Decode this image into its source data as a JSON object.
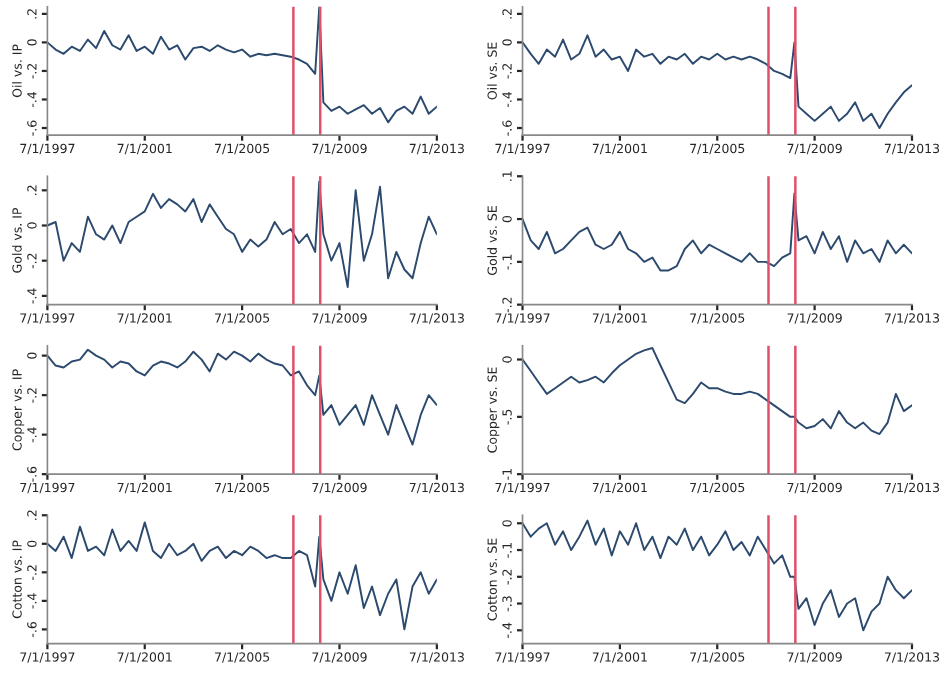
{
  "chart_data": [
    {
      "type": "line",
      "ylabel": "Oil vs. IP",
      "x": [
        "1997-07",
        "1997-11",
        "1998-03",
        "1998-07",
        "1998-11",
        "1999-03",
        "1999-07",
        "1999-11",
        "2000-03",
        "2000-07",
        "2000-11",
        "2001-03",
        "2001-07",
        "2001-11",
        "2002-03",
        "2002-07",
        "2002-11",
        "2003-03",
        "2003-07",
        "2003-11",
        "2004-03",
        "2004-07",
        "2004-11",
        "2005-03",
        "2005-07",
        "2005-11",
        "2006-03",
        "2006-07",
        "2006-11",
        "2007-03",
        "2007-07",
        "2007-11",
        "2008-03",
        "2008-07",
        "2008-09",
        "2008-11",
        "2009-03",
        "2009-07",
        "2009-11",
        "2010-03",
        "2010-07",
        "2010-11",
        "2011-03",
        "2011-07",
        "2011-11",
        "2012-03",
        "2012-07",
        "2012-11",
        "2013-03",
        "2013-07"
      ],
      "series": [
        {
          "color": "#2c4a6e",
          "values": [
            0,
            -0.05,
            -0.08,
            -0.03,
            -0.06,
            0.02,
            -0.04,
            0.08,
            -0.02,
            -0.05,
            0.05,
            -0.06,
            -0.03,
            -0.08,
            0.04,
            -0.05,
            -0.02,
            -0.12,
            -0.04,
            -0.03,
            -0.06,
            -0.02,
            -0.05,
            -0.07,
            -0.05,
            -0.1,
            -0.08,
            -0.09,
            -0.08,
            -0.09,
            -0.1,
            -0.12,
            -0.15,
            -0.22,
            0.25,
            -0.42,
            -0.48,
            -0.45,
            -0.5,
            -0.47,
            -0.44,
            -0.5,
            -0.46,
            -0.56,
            -0.48,
            -0.45,
            -0.5,
            -0.38,
            -0.5,
            -0.45
          ]
        }
      ],
      "xlim": [
        "1997-07-01",
        "2013-07-01"
      ],
      "xticks": [
        {
          "value": "1997-07-01",
          "label": "7/1/1997"
        },
        {
          "value": "2001-07-01",
          "label": "7/1/2001"
        },
        {
          "value": "2005-07-01",
          "label": "7/1/2005"
        },
        {
          "value": "2009-07-01",
          "label": "7/1/2009"
        },
        {
          "value": "2013-07-01",
          "label": "7/1/2013"
        }
      ],
      "ylim": [
        -0.65,
        0.25
      ],
      "yticks": [
        {
          "value": 0.2,
          "label": ".2"
        },
        0,
        {
          "value": -0.2,
          "label": "-.2"
        },
        {
          "value": -0.4,
          "label": "-.4"
        },
        {
          "value": -0.6,
          "label": "-.6"
        }
      ],
      "ref_lines": [
        {
          "axis": "x",
          "value": "2007-08-09",
          "color": "#e0506a"
        },
        {
          "axis": "x",
          "value": "2008-09-15",
          "color": "#e0506a"
        }
      ]
    },
    {
      "type": "line",
      "ylabel": "Oil vs. SE",
      "x": [
        "1997-07",
        "1997-11",
        "1998-03",
        "1998-07",
        "1998-11",
        "1999-03",
        "1999-07",
        "1999-11",
        "2000-03",
        "2000-07",
        "2000-11",
        "2001-03",
        "2001-07",
        "2001-11",
        "2002-03",
        "2002-07",
        "2002-11",
        "2003-03",
        "2003-07",
        "2003-11",
        "2004-03",
        "2004-07",
        "2004-11",
        "2005-03",
        "2005-07",
        "2005-11",
        "2006-03",
        "2006-07",
        "2006-11",
        "2007-03",
        "2007-07",
        "2007-11",
        "2008-03",
        "2008-07",
        "2008-09",
        "2008-11",
        "2009-03",
        "2009-07",
        "2009-11",
        "2010-03",
        "2010-07",
        "2010-11",
        "2011-03",
        "2011-07",
        "2011-11",
        "2012-03",
        "2012-07",
        "2012-11",
        "2013-03",
        "2013-07"
      ],
      "series": [
        {
          "color": "#2c4a6e",
          "values": [
            0,
            -0.08,
            -0.15,
            -0.05,
            -0.1,
            0.02,
            -0.12,
            -0.08,
            0.05,
            -0.1,
            -0.05,
            -0.12,
            -0.1,
            -0.2,
            -0.05,
            -0.1,
            -0.08,
            -0.15,
            -0.1,
            -0.12,
            -0.08,
            -0.15,
            -0.1,
            -0.12,
            -0.08,
            -0.12,
            -0.1,
            -0.12,
            -0.1,
            -0.12,
            -0.15,
            -0.2,
            -0.22,
            -0.25,
            0.0,
            -0.45,
            -0.5,
            -0.55,
            -0.5,
            -0.45,
            -0.55,
            -0.5,
            -0.42,
            -0.55,
            -0.5,
            -0.6,
            -0.5,
            -0.42,
            -0.35,
            -0.3
          ]
        }
      ],
      "xlim": [
        "1997-07-01",
        "2013-07-01"
      ],
      "xticks": [
        {
          "value": "1997-07-01",
          "label": "7/1/1997"
        },
        {
          "value": "2001-07-01",
          "label": "7/1/2001"
        },
        {
          "value": "2005-07-01",
          "label": "7/1/2005"
        },
        {
          "value": "2009-07-01",
          "label": "7/1/2009"
        },
        {
          "value": "2013-07-01",
          "label": "7/1/2013"
        }
      ],
      "ylim": [
        -0.65,
        0.25
      ],
      "yticks": [
        {
          "value": 0.2,
          "label": ".2"
        },
        0,
        {
          "value": -0.2,
          "label": "-.2"
        },
        {
          "value": -0.4,
          "label": "-.4"
        },
        {
          "value": -0.6,
          "label": "-.6"
        }
      ],
      "ref_lines": [
        {
          "axis": "x",
          "value": "2007-08-09",
          "color": "#e0506a"
        },
        {
          "axis": "x",
          "value": "2008-09-15",
          "color": "#e0506a"
        }
      ]
    },
    {
      "type": "line",
      "ylabel": "Gold vs. IP",
      "x": [
        "1997-07",
        "1997-11",
        "1998-03",
        "1998-07",
        "1998-11",
        "1999-03",
        "1999-07",
        "1999-11",
        "2000-03",
        "2000-07",
        "2000-11",
        "2001-03",
        "2001-07",
        "2001-11",
        "2002-03",
        "2002-07",
        "2002-11",
        "2003-03",
        "2003-07",
        "2003-11",
        "2004-03",
        "2004-07",
        "2004-11",
        "2005-03",
        "2005-07",
        "2005-11",
        "2006-03",
        "2006-07",
        "2006-11",
        "2007-03",
        "2007-07",
        "2007-11",
        "2008-03",
        "2008-07",
        "2008-09",
        "2008-11",
        "2009-03",
        "2009-07",
        "2009-11",
        "2010-03",
        "2010-07",
        "2010-11",
        "2011-03",
        "2011-07",
        "2011-11",
        "2012-03",
        "2012-07",
        "2012-11",
        "2013-03",
        "2013-07"
      ],
      "series": [
        {
          "color": "#2c4a6e",
          "values": [
            0,
            0.02,
            -0.2,
            -0.1,
            -0.15,
            0.05,
            -0.05,
            -0.08,
            0,
            -0.1,
            0.02,
            0.05,
            0.08,
            0.18,
            0.1,
            0.15,
            0.12,
            0.08,
            0.15,
            0.02,
            0.12,
            0.05,
            -0.02,
            -0.05,
            -0.15,
            -0.08,
            -0.12,
            -0.08,
            0.02,
            -0.05,
            -0.02,
            -0.1,
            -0.05,
            -0.15,
            0.25,
            -0.05,
            -0.2,
            -0.1,
            -0.35,
            0.2,
            -0.2,
            -0.05,
            0.22,
            -0.3,
            -0.15,
            -0.25,
            -0.3,
            -0.1,
            0.05,
            -0.05
          ]
        }
      ],
      "xlim": [
        "1997-07-01",
        "2013-07-01"
      ],
      "xticks": [
        {
          "value": "1997-07-01",
          "label": "7/1/1997"
        },
        {
          "value": "2001-07-01",
          "label": "7/1/2001"
        },
        {
          "value": "2005-07-01",
          "label": "7/1/2005"
        },
        {
          "value": "2009-07-01",
          "label": "7/1/2009"
        },
        {
          "value": "2013-07-01",
          "label": "7/1/2013"
        }
      ],
      "ylim": [
        -0.45,
        0.28
      ],
      "yticks": [
        {
          "value": 0.2,
          "label": ".2"
        },
        0,
        {
          "value": -0.2,
          "label": "-.2"
        },
        {
          "value": -0.4,
          "label": "-.4"
        }
      ],
      "ref_lines": [
        {
          "axis": "x",
          "value": "2007-08-09",
          "color": "#e0506a"
        },
        {
          "axis": "x",
          "value": "2008-09-15",
          "color": "#e0506a"
        }
      ]
    },
    {
      "type": "line",
      "ylabel": "Gold vs. SE",
      "x": [
        "1997-07",
        "1997-11",
        "1998-03",
        "1998-07",
        "1998-11",
        "1999-03",
        "1999-07",
        "1999-11",
        "2000-03",
        "2000-07",
        "2000-11",
        "2001-03",
        "2001-07",
        "2001-11",
        "2002-03",
        "2002-07",
        "2002-11",
        "2003-03",
        "2003-07",
        "2003-11",
        "2004-03",
        "2004-07",
        "2004-11",
        "2005-03",
        "2005-07",
        "2005-11",
        "2006-03",
        "2006-07",
        "2006-11",
        "2007-03",
        "2007-07",
        "2007-11",
        "2008-03",
        "2008-07",
        "2008-09",
        "2008-11",
        "2009-03",
        "2009-07",
        "2009-11",
        "2010-03",
        "2010-07",
        "2010-11",
        "2011-03",
        "2011-07",
        "2011-11",
        "2012-03",
        "2012-07",
        "2012-11",
        "2013-03",
        "2013-07"
      ],
      "series": [
        {
          "color": "#2c4a6e",
          "values": [
            0,
            -0.05,
            -0.07,
            -0.03,
            -0.08,
            -0.07,
            -0.05,
            -0.03,
            -0.02,
            -0.06,
            -0.07,
            -0.06,
            -0.03,
            -0.07,
            -0.08,
            -0.1,
            -0.09,
            -0.12,
            -0.12,
            -0.11,
            -0.07,
            -0.05,
            -0.08,
            -0.06,
            -0.07,
            -0.08,
            -0.09,
            -0.1,
            -0.08,
            -0.1,
            -0.1,
            -0.11,
            -0.09,
            -0.08,
            0.06,
            -0.05,
            -0.04,
            -0.08,
            -0.03,
            -0.07,
            -0.04,
            -0.1,
            -0.05,
            -0.08,
            -0.07,
            -0.1,
            -0.05,
            -0.08,
            -0.06,
            -0.08
          ]
        }
      ],
      "xlim": [
        "1997-07-01",
        "2013-07-01"
      ],
      "xticks": [
        {
          "value": "1997-07-01",
          "label": "7/1/1997"
        },
        {
          "value": "2001-07-01",
          "label": "7/1/2001"
        },
        {
          "value": "2005-07-01",
          "label": "7/1/2005"
        },
        {
          "value": "2009-07-01",
          "label": "7/1/2009"
        },
        {
          "value": "2013-07-01",
          "label": "7/1/2013"
        }
      ],
      "ylim": [
        -0.2,
        0.1
      ],
      "yticks": [
        {
          "value": 0.1,
          "label": ".1"
        },
        0,
        {
          "value": -0.1,
          "label": "-.1"
        },
        {
          "value": -0.2,
          "label": "-.2"
        }
      ],
      "ref_lines": [
        {
          "axis": "x",
          "value": "2007-08-09",
          "color": "#e0506a"
        },
        {
          "axis": "x",
          "value": "2008-09-15",
          "color": "#e0506a"
        }
      ]
    },
    {
      "type": "line",
      "ylabel": "Copper vs. IP",
      "x": [
        "1997-07",
        "1997-11",
        "1998-03",
        "1998-07",
        "1998-11",
        "1999-03",
        "1999-07",
        "1999-11",
        "2000-03",
        "2000-07",
        "2000-11",
        "2001-03",
        "2001-07",
        "2001-11",
        "2002-03",
        "2002-07",
        "2002-11",
        "2003-03",
        "2003-07",
        "2003-11",
        "2004-03",
        "2004-07",
        "2004-11",
        "2005-03",
        "2005-07",
        "2005-11",
        "2006-03",
        "2006-07",
        "2006-11",
        "2007-03",
        "2007-07",
        "2007-11",
        "2008-03",
        "2008-07",
        "2008-09",
        "2008-11",
        "2009-03",
        "2009-07",
        "2009-11",
        "2010-03",
        "2010-07",
        "2010-11",
        "2011-03",
        "2011-07",
        "2011-11",
        "2012-03",
        "2012-07",
        "2012-11",
        "2013-03",
        "2013-07"
      ],
      "series": [
        {
          "color": "#2c4a6e",
          "values": [
            0,
            -0.05,
            -0.06,
            -0.03,
            -0.02,
            0.03,
            0.0,
            -0.02,
            -0.06,
            -0.03,
            -0.04,
            -0.08,
            -0.1,
            -0.05,
            -0.03,
            -0.04,
            -0.06,
            -0.03,
            0.02,
            -0.02,
            -0.08,
            0.01,
            -0.02,
            0.02,
            0.0,
            -0.03,
            0.01,
            -0.02,
            -0.04,
            -0.05,
            -0.1,
            -0.08,
            -0.15,
            -0.2,
            -0.1,
            -0.3,
            -0.25,
            -0.35,
            -0.3,
            -0.25,
            -0.35,
            -0.2,
            -0.3,
            -0.4,
            -0.25,
            -0.35,
            -0.45,
            -0.3,
            -0.2,
            -0.25
          ]
        }
      ],
      "xlim": [
        "1997-07-01",
        "2013-07-01"
      ],
      "xticks": [
        {
          "value": "1997-07-01",
          "label": "7/1/1997"
        },
        {
          "value": "2001-07-01",
          "label": "7/1/2001"
        },
        {
          "value": "2005-07-01",
          "label": "7/1/2005"
        },
        {
          "value": "2009-07-01",
          "label": "7/1/2009"
        },
        {
          "value": "2013-07-01",
          "label": "7/1/2013"
        }
      ],
      "ylim": [
        -0.6,
        0.05
      ],
      "yticks": [
        0,
        {
          "value": -0.2,
          "label": "-.2"
        },
        {
          "value": -0.4,
          "label": "-.4"
        },
        {
          "value": -0.6,
          "label": "-.6"
        }
      ],
      "ref_lines": [
        {
          "axis": "x",
          "value": "2007-08-09",
          "color": "#e0506a"
        },
        {
          "axis": "x",
          "value": "2008-09-15",
          "color": "#e0506a"
        }
      ]
    },
    {
      "type": "line",
      "ylabel": "Copper vs. SE",
      "x": [
        "1997-07",
        "1997-11",
        "1998-03",
        "1998-07",
        "1998-11",
        "1999-03",
        "1999-07",
        "1999-11",
        "2000-03",
        "2000-07",
        "2000-11",
        "2001-03",
        "2001-07",
        "2001-11",
        "2002-03",
        "2002-07",
        "2002-11",
        "2003-03",
        "2003-07",
        "2003-11",
        "2004-03",
        "2004-07",
        "2004-11",
        "2005-03",
        "2005-07",
        "2005-11",
        "2006-03",
        "2006-07",
        "2006-11",
        "2007-03",
        "2007-07",
        "2007-11",
        "2008-03",
        "2008-07",
        "2008-09",
        "2008-11",
        "2009-03",
        "2009-07",
        "2009-11",
        "2010-03",
        "2010-07",
        "2010-11",
        "2011-03",
        "2011-07",
        "2011-11",
        "2012-03",
        "2012-07",
        "2012-11",
        "2013-03",
        "2013-07"
      ],
      "series": [
        {
          "color": "#2c4a6e",
          "values": [
            0,
            -0.1,
            -0.2,
            -0.3,
            -0.25,
            -0.2,
            -0.15,
            -0.2,
            -0.18,
            -0.15,
            -0.2,
            -0.12,
            -0.05,
            0.0,
            0.05,
            0.08,
            0.1,
            -0.05,
            -0.2,
            -0.35,
            -0.38,
            -0.3,
            -0.2,
            -0.25,
            -0.25,
            -0.28,
            -0.3,
            -0.3,
            -0.28,
            -0.3,
            -0.35,
            -0.4,
            -0.45,
            -0.5,
            -0.5,
            -0.55,
            -0.6,
            -0.58,
            -0.52,
            -0.6,
            -0.45,
            -0.55,
            -0.6,
            -0.55,
            -0.62,
            -0.65,
            -0.55,
            -0.3,
            -0.45,
            -0.4
          ]
        }
      ],
      "xlim": [
        "1997-07-01",
        "2013-07-01"
      ],
      "xticks": [
        {
          "value": "1997-07-01",
          "label": "7/1/1997"
        },
        {
          "value": "2001-07-01",
          "label": "7/1/2001"
        },
        {
          "value": "2005-07-01",
          "label": "7/1/2005"
        },
        {
          "value": "2009-07-01",
          "label": "7/1/2009"
        },
        {
          "value": "2013-07-01",
          "label": "7/1/2013"
        }
      ],
      "ylim": [
        -1,
        0.12
      ],
      "yticks": [
        0,
        {
          "value": -0.5,
          "label": "-.5"
        },
        -1
      ],
      "ref_lines": [
        {
          "axis": "x",
          "value": "2007-08-09",
          "color": "#e0506a"
        },
        {
          "axis": "x",
          "value": "2008-09-15",
          "color": "#e0506a"
        }
      ]
    },
    {
      "type": "line",
      "ylabel": "Cotton vs. IP",
      "x": [
        "1997-07",
        "1997-11",
        "1998-03",
        "1998-07",
        "1998-11",
        "1999-03",
        "1999-07",
        "1999-11",
        "2000-03",
        "2000-07",
        "2000-11",
        "2001-03",
        "2001-07",
        "2001-11",
        "2002-03",
        "2002-07",
        "2002-11",
        "2003-03",
        "2003-07",
        "2003-11",
        "2004-03",
        "2004-07",
        "2004-11",
        "2005-03",
        "2005-07",
        "2005-11",
        "2006-03",
        "2006-07",
        "2006-11",
        "2007-03",
        "2007-07",
        "2007-11",
        "2008-03",
        "2008-07",
        "2008-09",
        "2008-11",
        "2009-03",
        "2009-07",
        "2009-11",
        "2010-03",
        "2010-07",
        "2010-11",
        "2011-03",
        "2011-07",
        "2011-11",
        "2012-03",
        "2012-07",
        "2012-11",
        "2013-03",
        "2013-07"
      ],
      "series": [
        {
          "color": "#2c4a6e",
          "values": [
            0,
            -0.05,
            0.05,
            -0.1,
            0.12,
            -0.05,
            -0.02,
            -0.08,
            0.1,
            -0.05,
            0.02,
            -0.05,
            0.15,
            -0.05,
            -0.1,
            0.0,
            -0.08,
            -0.05,
            0.0,
            -0.12,
            -0.05,
            -0.02,
            -0.1,
            -0.05,
            -0.08,
            -0.02,
            -0.05,
            -0.1,
            -0.08,
            -0.1,
            -0.1,
            -0.05,
            -0.08,
            -0.3,
            0.05,
            -0.25,
            -0.4,
            -0.2,
            -0.35,
            -0.15,
            -0.45,
            -0.3,
            -0.5,
            -0.35,
            -0.25,
            -0.6,
            -0.3,
            -0.2,
            -0.35,
            -0.25
          ]
        }
      ],
      "xlim": [
        "1997-07-01",
        "2013-07-01"
      ],
      "xticks": [
        {
          "value": "1997-07-01",
          "label": "7/1/1997"
        },
        {
          "value": "2001-07-01",
          "label": "7/1/2001"
        },
        {
          "value": "2005-07-01",
          "label": "7/1/2005"
        },
        {
          "value": "2009-07-01",
          "label": "7/1/2009"
        },
        {
          "value": "2013-07-01",
          "label": "7/1/2013"
        }
      ],
      "ylim": [
        -0.7,
        0.2
      ],
      "yticks": [
        {
          "value": 0.2,
          "label": ".2"
        },
        0,
        {
          "value": -0.2,
          "label": "-.2"
        },
        {
          "value": -0.4,
          "label": "-.4"
        },
        {
          "value": -0.6,
          "label": "-.6"
        }
      ],
      "ref_lines": [
        {
          "axis": "x",
          "value": "2007-08-09",
          "color": "#e0506a"
        },
        {
          "axis": "x",
          "value": "2008-09-15",
          "color": "#e0506a"
        }
      ]
    },
    {
      "type": "line",
      "ylabel": "Cotton vs. SE",
      "x": [
        "1997-07",
        "1997-11",
        "1998-03",
        "1998-07",
        "1998-11",
        "1999-03",
        "1999-07",
        "1999-11",
        "2000-03",
        "2000-07",
        "2000-11",
        "2001-03",
        "2001-07",
        "2001-11",
        "2002-03",
        "2002-07",
        "2002-11",
        "2003-03",
        "2003-07",
        "2003-11",
        "2004-03",
        "2004-07",
        "2004-11",
        "2005-03",
        "2005-07",
        "2005-11",
        "2006-03",
        "2006-07",
        "2006-11",
        "2007-03",
        "2007-07",
        "2007-11",
        "2008-03",
        "2008-07",
        "2008-09",
        "2008-11",
        "2009-03",
        "2009-07",
        "2009-11",
        "2010-03",
        "2010-07",
        "2010-11",
        "2011-03",
        "2011-07",
        "2011-11",
        "2012-03",
        "2012-07",
        "2012-11",
        "2013-03",
        "2013-07"
      ],
      "series": [
        {
          "color": "#2c4a6e",
          "values": [
            0,
            -0.05,
            -0.02,
            0.0,
            -0.08,
            -0.03,
            -0.1,
            -0.05,
            0.01,
            -0.08,
            -0.02,
            -0.12,
            -0.03,
            -0.08,
            0.0,
            -0.1,
            -0.05,
            -0.13,
            -0.05,
            -0.08,
            -0.02,
            -0.1,
            -0.05,
            -0.12,
            -0.08,
            -0.03,
            -0.1,
            -0.07,
            -0.12,
            -0.05,
            -0.1,
            -0.15,
            -0.12,
            -0.2,
            -0.2,
            -0.32,
            -0.28,
            -0.38,
            -0.3,
            -0.25,
            -0.35,
            -0.3,
            -0.28,
            -0.4,
            -0.33,
            -0.3,
            -0.2,
            -0.25,
            -0.28,
            -0.25
          ]
        }
      ],
      "xlim": [
        "1997-07-01",
        "2013-07-01"
      ],
      "xticks": [
        {
          "value": "1997-07-01",
          "label": "7/1/1997"
        },
        {
          "value": "2001-07-01",
          "label": "7/1/2001"
        },
        {
          "value": "2005-07-01",
          "label": "7/1/2005"
        },
        {
          "value": "2009-07-01",
          "label": "7/1/2009"
        },
        {
          "value": "2013-07-01",
          "label": "7/1/2013"
        }
      ],
      "ylim": [
        -0.45,
        0.03
      ],
      "yticks": [
        0,
        {
          "value": -0.1,
          "label": "-.1"
        },
        {
          "value": -0.2,
          "label": "-.2"
        },
        {
          "value": -0.3,
          "label": "-.3"
        },
        {
          "value": -0.4,
          "label": "-.4"
        }
      ],
      "ref_lines": [
        {
          "axis": "x",
          "value": "2007-08-09",
          "color": "#e0506a"
        },
        {
          "axis": "x",
          "value": "2008-09-15",
          "color": "#e0506a"
        }
      ]
    }
  ]
}
